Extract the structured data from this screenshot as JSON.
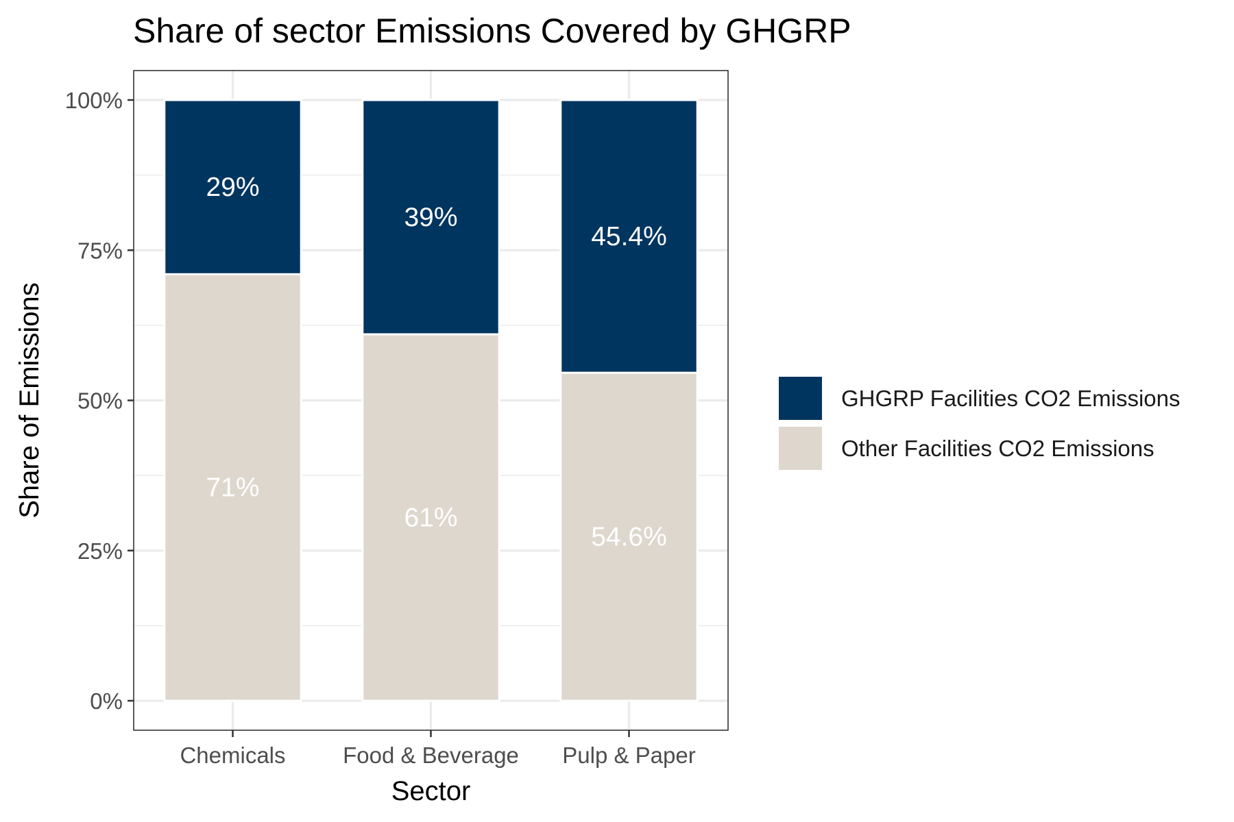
{
  "chart_data": {
    "type": "bar",
    "stacked": true,
    "title": "Share of sector Emissions Covered by GHGRP",
    "xlabel": "Sector",
    "ylabel": "Share of Emissions",
    "categories": [
      "Chemicals",
      "Food & Beverage",
      "Pulp & Paper"
    ],
    "ylim": [
      0,
      1
    ],
    "yticks": [
      {
        "value": 0,
        "label": "0%"
      },
      {
        "value": 0.25,
        "label": "25%"
      },
      {
        "value": 0.5,
        "label": "50%"
      },
      {
        "value": 0.75,
        "label": "75%"
      },
      {
        "value": 1,
        "label": "100%"
      }
    ],
    "series": [
      {
        "name": "Other Facilities CO2 Emissions",
        "color": "#ddd7ce",
        "values": [
          0.71,
          0.61,
          0.546
        ],
        "labels": [
          "71%",
          "61%",
          "54.6%"
        ]
      },
      {
        "name": "GHGRP Facilities CO2 Emissions",
        "color": "#00355f",
        "values": [
          0.29,
          0.39,
          0.454
        ],
        "labels": [
          "29%",
          "39%",
          "45.4%"
        ]
      }
    ],
    "legend": {
      "position": "right",
      "order": [
        "GHGRP Facilities CO2 Emissions",
        "Other Facilities CO2 Emissions"
      ]
    },
    "grid": true
  }
}
